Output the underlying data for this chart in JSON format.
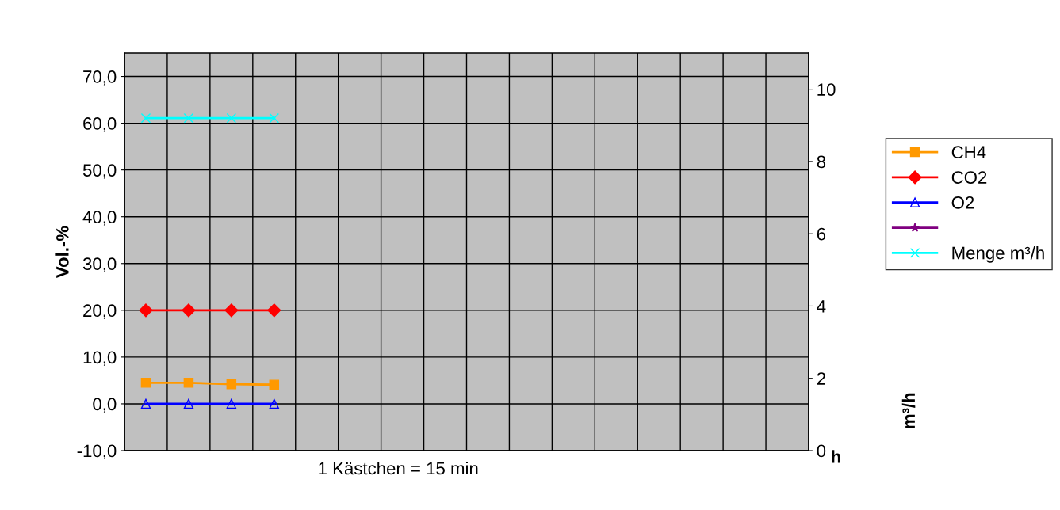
{
  "chart_data": {
    "type": "line",
    "categories": [
      null,
      null,
      null,
      null,
      null,
      null,
      null,
      null,
      null,
      null,
      null,
      null,
      null,
      null,
      null,
      null
    ],
    "series": [
      {
        "name": "CH4",
        "color": "#ff9900",
        "marker": "square",
        "values": [
          4.5,
          4.5,
          4.2,
          4.1,
          null,
          null,
          null,
          null,
          null,
          null,
          null,
          null,
          null,
          null,
          null,
          null
        ]
      },
      {
        "name": "CO2",
        "color": "#ff0000",
        "marker": "diamond",
        "values": [
          20.0,
          20.0,
          20.0,
          20.0,
          null,
          null,
          null,
          null,
          null,
          null,
          null,
          null,
          null,
          null,
          null,
          null
        ]
      },
      {
        "name": "O2",
        "color": "#0000ff",
        "marker": "triangle",
        "values": [
          0.0,
          0.0,
          0.0,
          0.0,
          null,
          null,
          null,
          null,
          null,
          null,
          null,
          null,
          null,
          null,
          null,
          null
        ]
      },
      {
        "color": "#800080",
        "marker": "star",
        "values": [
          null,
          null,
          null,
          null,
          null,
          null,
          null,
          null,
          null,
          null,
          null,
          null,
          null,
          null,
          null,
          null
        ]
      },
      {
        "name": "Menge m³/h",
        "color": "#00ffff",
        "marker": "cross",
        "axis": "y2",
        "values": [
          9.2,
          9.2,
          9.2,
          9.2,
          null,
          null,
          null,
          null,
          null,
          null,
          null,
          null,
          null,
          null,
          null,
          null
        ]
      }
    ],
    "ylabel": "Vol.-%",
    "y2label": "m³/h",
    "xlabel": "h",
    "ylim": [
      -10,
      75
    ],
    "yticks": [
      {
        "value": -10,
        "label": "-10,0"
      },
      {
        "value": 0,
        "label": "0,0"
      },
      {
        "value": 10,
        "label": "10,0"
      },
      {
        "value": 20,
        "label": "20,0"
      },
      {
        "value": 30,
        "label": "30,0"
      },
      {
        "value": 40,
        "label": "40,0"
      },
      {
        "value": 50,
        "label": "50,0"
      },
      {
        "value": 60,
        "label": "60,0"
      },
      {
        "value": 70,
        "label": "70,0"
      }
    ],
    "y2lim": [
      0,
      11
    ],
    "y2ticks": [
      0,
      2,
      4,
      6,
      8,
      10
    ],
    "annotations": [
      "1 Kästchen = 15 min"
    ],
    "grid": true,
    "legend": "right",
    "line_style": "solid"
  }
}
